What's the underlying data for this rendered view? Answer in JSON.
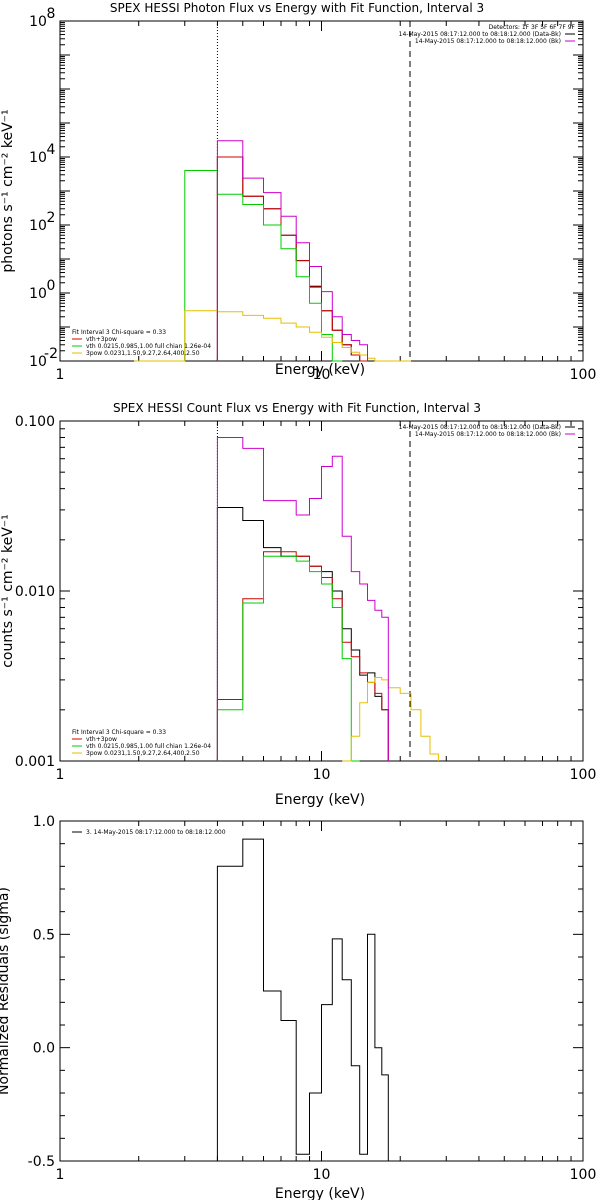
{
  "chart_data": [
    {
      "type": "line",
      "title": "SPEX HESSI Photon Flux vs Energy with Fit Function, Interval 3",
      "xlabel": "Energy (keV)",
      "ylabel": "photons s⁻¹ cm⁻² keV⁻¹",
      "xscale": "log",
      "yscale": "log",
      "xlim": [
        1,
        100
      ],
      "ylim": [
        0.01,
        100000000
      ],
      "xticks": [
        {
          "v": 1,
          "label": "1"
        },
        {
          "v": 10,
          "label": "10"
        },
        {
          "v": 100,
          "label": "100"
        }
      ],
      "yticks": [
        {
          "v": 0.01,
          "label": "10",
          "exp": "-2"
        },
        {
          "v": 1,
          "label": "10",
          "exp": "0"
        },
        {
          "v": 100,
          "label": "10",
          "exp": "2"
        },
        {
          "v": 10000,
          "label": "10",
          "exp": "4"
        },
        {
          "v": 100000000,
          "label": "10",
          "exp": "8"
        }
      ],
      "vlines": [
        {
          "x": 4.0,
          "style": "dotted",
          "color": "#000000"
        },
        {
          "x": 21.8,
          "style": "dashed",
          "color": "#000000"
        }
      ],
      "edges": [
        3.0,
        4.0,
        5.0,
        6.0,
        7.0,
        8.0,
        9.0,
        10.0,
        11.0,
        12.0,
        13.0,
        14.0,
        15.0,
        16.0,
        17.0,
        18.0,
        20.0,
        22.0,
        24.0,
        26.0,
        28.0
      ],
      "series": [
        {
          "name": "vth+3pow",
          "color": "#000000",
          "start": 1,
          "values": [
            10000,
            700,
            300,
            50,
            9,
            1.5,
            0.3,
            0.08,
            0.03,
            0.015,
            0.01
          ]
        },
        {
          "name": "vth+3pow",
          "color": "#d00000",
          "start": 1,
          "values": [
            10000,
            700,
            300,
            50,
            9,
            1.6,
            0.3,
            0.08,
            0.03,
            0.015,
            0.01
          ]
        },
        {
          "name": "vth 0.0215,0.985,1.00  full chian 1.26e-04",
          "color": "#00cc00",
          "start": 0,
          "values": [
            4000,
            800,
            400,
            100,
            20,
            3,
            0.5,
            0.06,
            0.01
          ]
        },
        {
          "name": "3pow 0.0231,1.50,9.27,2.64,400,2.50",
          "color": "#e6c000",
          "start": -2,
          "values": [
            0.01,
            0.01,
            0.3,
            0.28,
            0.22,
            0.18,
            0.13,
            0.1,
            0.07,
            0.05,
            0.035,
            0.025,
            0.018,
            0.015,
            0.012,
            0.01,
            0.01,
            0.01,
            0.01
          ]
        },
        {
          "name": "14-May-2015 08:17:12.000 to 08:18:12.000 (Bk)",
          "color": "#cc00cc",
          "start": 1,
          "values": [
            30000,
            2400,
            900,
            180,
            30,
            6,
            1.1,
            0.2,
            0.06,
            0.04,
            0.03
          ]
        }
      ],
      "legend": {
        "placement": "top-right",
        "header": "Detectors: 1F 3F 5F 6F 7F 9F",
        "entries": [
          {
            "label": "14-May-2015 08:17:12.000 to 08:18:12.000 (Data-Bk)",
            "color": "#000000"
          },
          {
            "label": "14-May-2015 08:17:12.000 to 08:18:12.000 (Bk)",
            "color": "#cc00cc"
          }
        ]
      },
      "fit_legend": {
        "placement": "bottom-left",
        "header": "Fit Interval 3   Chi-square = 0.33",
        "entries": [
          {
            "label": "vth+3pow",
            "color": "#d00000"
          },
          {
            "label": "vth 0.0215,0.985,1.00  full chian 1.26e-04",
            "color": "#00cc00"
          },
          {
            "label": "3pow 0.0231,1.50,9.27,2.64,400,2.50",
            "color": "#e6c000"
          }
        ]
      }
    },
    {
      "type": "line",
      "title": "SPEX HESSI Count Flux vs Energy with Fit Function, Interval 3",
      "xlabel": "Energy (keV)",
      "ylabel": "counts s⁻¹ cm⁻² keV⁻¹",
      "xscale": "log",
      "yscale": "log",
      "xlim": [
        1,
        100
      ],
      "ylim": [
        0.001,
        0.1
      ],
      "xticks": [
        {
          "v": 1,
          "label": "1"
        },
        {
          "v": 10,
          "label": "10"
        },
        {
          "v": 100,
          "label": "100"
        }
      ],
      "yticks": [
        {
          "v": 0.001,
          "label": "0.001"
        },
        {
          "v": 0.01,
          "label": "0.010"
        },
        {
          "v": 0.1,
          "label": "0.100"
        }
      ],
      "vlines": [
        {
          "x": 4.0,
          "style": "dotted",
          "color": "#000000"
        },
        {
          "x": 21.8,
          "style": "dashed",
          "color": "#000000"
        }
      ],
      "edges": [
        3.0,
        4.0,
        5.0,
        6.0,
        7.0,
        8.0,
        9.0,
        10.0,
        11.0,
        12.0,
        13.0,
        14.0,
        15.0,
        16.0,
        17.0,
        18.0,
        20.0,
        22.0,
        24.0,
        26.0,
        28.0
      ],
      "series": [
        {
          "name": "Data-Bk",
          "color": "#000000",
          "start": 1,
          "values": [
            0.031,
            0.026,
            0.018,
            0.016,
            0.016,
            0.014,
            0.013,
            0.01,
            0.006,
            0.0045,
            0.0032,
            0.0033,
            0.0024,
            0.002
          ]
        },
        {
          "name": "vth+3pow",
          "color": "#d00000",
          "start": 1,
          "values": [
            0.0023,
            0.009,
            0.017,
            0.017,
            0.016,
            0.014,
            0.012,
            0.009,
            0.005,
            0.0041,
            0.0033,
            0.0029,
            0.0025,
            0.002
          ]
        },
        {
          "name": "vth",
          "color": "#00cc00",
          "start": 1,
          "values": [
            0.002,
            0.0085,
            0.016,
            0.016,
            0.015,
            0.013,
            0.011,
            0.008,
            0.004,
            0.001
          ]
        },
        {
          "name": "3pow",
          "color": "#e6c000",
          "start": 9,
          "values": [
            0.001,
            0.0014,
            0.0022,
            0.0029,
            0.0031,
            0.003,
            0.0027,
            0.0025,
            0.002,
            0.0014,
            0.0011
          ]
        },
        {
          "name": "Bk",
          "color": "#cc00cc",
          "start": 1,
          "values": [
            0.08,
            0.069,
            0.034,
            0.034,
            0.028,
            0.035,
            0.054,
            0.062,
            0.021,
            0.013,
            0.011,
            0.0088,
            0.0077,
            0.007
          ]
        }
      ],
      "legend": {
        "placement": "top-right",
        "entries": [
          {
            "label": "14-May-2015 08:17:12.000 to 08:18:12.000 (Data-Bk)",
            "color": "#000000"
          },
          {
            "label": "14-May-2015 08:17:12.000 to 08:18:12.000 (Bk)",
            "color": "#cc00cc"
          }
        ]
      },
      "fit_legend": {
        "placement": "bottom-left",
        "header": "Fit Interval 3   Chi-square = 0.33",
        "entries": [
          {
            "label": "vth+3pow",
            "color": "#d00000"
          },
          {
            "label": "vth 0.0215,0.985,1.00  full chian 1.26e-04",
            "color": "#00cc00"
          },
          {
            "label": "3pow 0.0231,1.50,9.27,2.64,400,2.50",
            "color": "#e6c000"
          }
        ]
      }
    },
    {
      "type": "line",
      "title": "",
      "xlabel": "Energy (keV)",
      "ylabel": "Normalized Residuals (sigma)",
      "xscale": "log",
      "yscale": "linear",
      "xlim": [
        1,
        100
      ],
      "ylim": [
        -0.5,
        1.0
      ],
      "xticks": [
        {
          "v": 1,
          "label": "1"
        },
        {
          "v": 10,
          "label": "10"
        },
        {
          "v": 100,
          "label": "100"
        }
      ],
      "yticks": [
        {
          "v": -0.5,
          "label": "-0.5"
        },
        {
          "v": 0.0,
          "label": "0.0"
        },
        {
          "v": 0.5,
          "label": "0.5"
        },
        {
          "v": 1.0,
          "label": "1.0"
        }
      ],
      "vlines": [],
      "edges": [
        3.0,
        4.0,
        5.0,
        6.0,
        7.0,
        8.0,
        9.0,
        10.0,
        11.0,
        12.0,
        13.0,
        14.0,
        15.0,
        16.0,
        17.0,
        18.0,
        20.0,
        22.0,
        24.0,
        26.0,
        28.0
      ],
      "series": [
        {
          "name": "3. 14-May-2015 08:17:12.000 to 08:18:12.000",
          "color": "#000000",
          "start": 1,
          "values": [
            0.8,
            0.92,
            0.25,
            0.12,
            -0.47,
            -0.2,
            0.19,
            0.48,
            0.3,
            -0.08,
            -0.47,
            0.5,
            0.0,
            -0.12
          ]
        }
      ],
      "legend": {
        "placement": "top-left",
        "entries": [
          {
            "label": "3. 14-May-2015 08:17:12.000 to 08:18:12.000",
            "color": "#000000"
          }
        ]
      }
    }
  ]
}
